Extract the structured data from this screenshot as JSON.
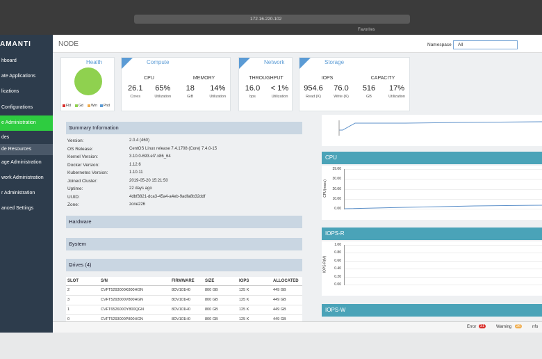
{
  "browser": {
    "url": "172.16.220.102",
    "favorites": "Favorites"
  },
  "sidebar": {
    "brand": "AMANTI",
    "items": [
      "hboard",
      "ate Applications",
      "lications",
      " Configurations",
      "e Administration",
      "des",
      "de Resources",
      "age Administration",
      "work Administration",
      "r Administration",
      "anced Settings"
    ]
  },
  "header": {
    "title": "NODE",
    "namespace_label": "Namespace",
    "namespace_value": "All"
  },
  "cards": {
    "health": {
      "title": "Health",
      "legend": [
        "Fld",
        "Gd",
        "Wrn",
        "Pnd"
      ]
    },
    "compute": {
      "title": "Compute",
      "metrics": [
        {
          "label": "CPU",
          "values": [
            {
              "value": "26.1",
              "unit": "Cores"
            },
            {
              "value": "65%",
              "unit": "Utilization"
            }
          ]
        },
        {
          "label": "MEMORY",
          "values": [
            {
              "value": "18",
              "unit": "GiB"
            },
            {
              "value": "14%",
              "unit": "Utilization"
            }
          ]
        }
      ]
    },
    "network": {
      "title": "Network",
      "metrics": [
        {
          "label": "THROUGHPUT",
          "values": [
            {
              "value": "16.0",
              "unit": "bps"
            },
            {
              "value": "< 1%",
              "unit": "Utilization"
            }
          ]
        }
      ]
    },
    "storage": {
      "title": "Storage",
      "metrics": [
        {
          "label": "IOPS",
          "values": [
            {
              "value": "954.6",
              "unit": "Read (K)"
            },
            {
              "value": "76.0",
              "unit": "Write (K)"
            }
          ]
        },
        {
          "label": "CAPACITY",
          "values": [
            {
              "value": "516",
              "unit": "GB"
            },
            {
              "value": "17%",
              "unit": "Utilization"
            }
          ]
        }
      ]
    }
  },
  "summary": {
    "title": "Summary Information",
    "rows": [
      [
        "Version:",
        "2.0.4 (460)"
      ],
      [
        "OS Release:",
        "CentOS Linux release 7.4.1708 (Core) 7.4.0-15"
      ],
      [
        "Kernel Version:",
        "3.10.0-693.el7.x86_64"
      ],
      [
        "Docker Version:",
        "1.12.6"
      ],
      [
        "Kubernetes Version:",
        "1.10.11"
      ],
      [
        "Joined Cluster:",
        "2019-05-20 15:21:50"
      ],
      [
        "Uptime:",
        "22 days ago"
      ],
      [
        "UUID:",
        "4dbf3821-dca3-45a4-a4eb-9adfa8b32ddf"
      ],
      [
        "Zone:",
        "zone226"
      ]
    ]
  },
  "panels": [
    "Hardware",
    "System",
    "Drives (4)"
  ],
  "drives": {
    "columns": [
      "SLOT",
      "S/N",
      "FIRMWARE",
      "SIZE",
      "IOPS",
      "ALLOCATED"
    ],
    "rows": [
      [
        "2",
        "CVFT5293000K800HGN",
        "8DV101H0",
        "800 GB",
        "125 K",
        "449 GB"
      ],
      [
        "3",
        "CVFT5293000V800HGN",
        "8DV101H0",
        "800 GB",
        "125 K",
        "449 GB"
      ],
      [
        "1",
        "CVFT652600DY800QGN",
        "8DV101H0",
        "800 GB",
        "125 K",
        "449 GB"
      ],
      [
        "0",
        "CVFT5293000P800HGN",
        "8DV101H0",
        "800 GB",
        "125 K",
        "449 GB"
      ]
    ]
  },
  "charts": {
    "cpu": {
      "title": "CPU",
      "axis_label": "CPU(msec)",
      "ticks": [
        "39.00",
        "30.00",
        "20.00",
        "10.00",
        "0.00"
      ]
    },
    "iops_r": {
      "title": "IOPS-R",
      "axis_label": "IOPS-R(M)",
      "ticks": [
        "1.00",
        "0.80",
        "0.60",
        "0.40",
        "0.20",
        "0.00"
      ]
    },
    "iops_w": {
      "title": "IOPS-W"
    }
  },
  "status": {
    "error": "Error",
    "error_count": "31",
    "warning": "Warning",
    "warning_count": "26",
    "info": "nfo"
  }
}
